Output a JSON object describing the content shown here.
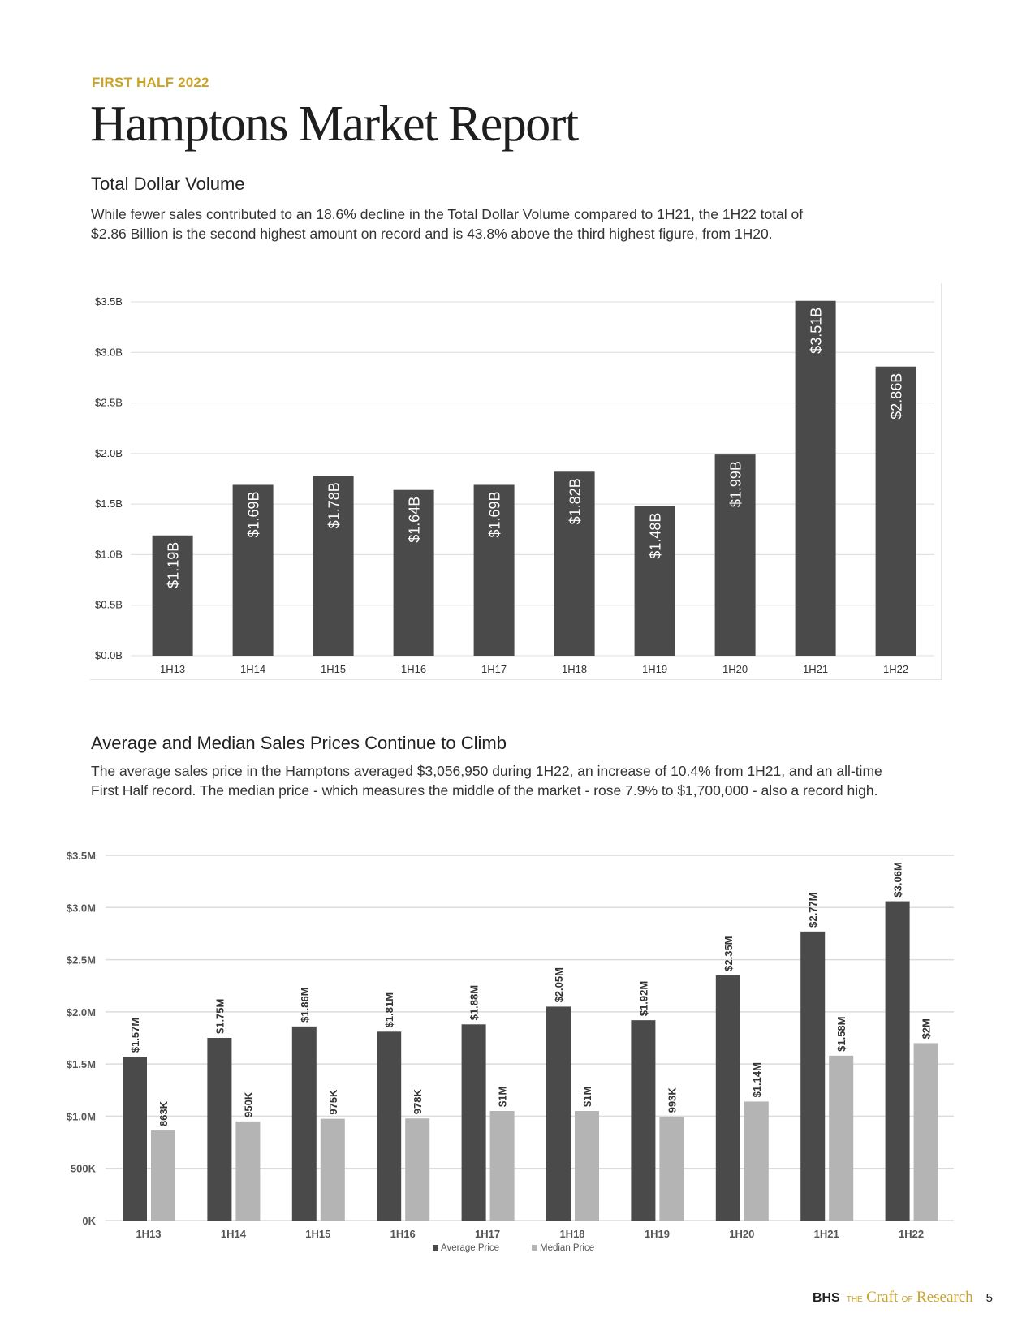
{
  "header": {
    "eyebrow": "FIRST HALF 2022",
    "title": "Hamptons Market Report"
  },
  "section1": {
    "heading": "Total Dollar Volume",
    "lines": [
      "While fewer sales contributed to an 18.6% decline in the Total Dollar Volume compared to 1H21, the 1H22 total of",
      "$2.86 Billion is the second highest amount on record and is 43.8% above the third highest figure, from 1H20."
    ]
  },
  "section2": {
    "heading": "Average and Median Sales Prices Continue to Climb",
    "lines": [
      "The average sales price in the Hamptons averaged $3,056,950 during 1H22, an increase of 10.4% from 1H21, and an all-time",
      "First Half record. The median price - which measures the middle of the market - rose 7.9% to $1,700,000 - also a record high."
    ]
  },
  "chart_data": [
    {
      "type": "bar",
      "title": "Total Dollar Volume",
      "categories": [
        "1H13",
        "1H14",
        "1H15",
        "1H16",
        "1H17",
        "1H18",
        "1H19",
        "1H20",
        "1H21",
        "1H22"
      ],
      "values": [
        1.19,
        1.69,
        1.78,
        1.64,
        1.69,
        1.82,
        1.48,
        1.99,
        3.51,
        2.86
      ],
      "value_labels": [
        "$1.19B",
        "$1.69B",
        "$1.78B",
        "$1.64B",
        "$1.69B",
        "$1.82B",
        "$1.48B",
        "$1.99B",
        "$3.51B",
        "$2.86B"
      ],
      "ylim": [
        0,
        3.5
      ],
      "yticks": [
        0,
        0.5,
        1.0,
        1.5,
        2.0,
        2.5,
        3.0,
        3.5
      ],
      "ytick_labels": [
        "$0.0B",
        "$0.5B",
        "$1.0B",
        "$1.5B",
        "$2.0B",
        "$2.5B",
        "$3.0B",
        "$3.5B"
      ],
      "grid": true,
      "color": "#4a4a4a"
    },
    {
      "type": "bar",
      "title": "Average and Median Sales Prices",
      "categories": [
        "1H13",
        "1H14",
        "1H15",
        "1H16",
        "1H17",
        "1H18",
        "1H19",
        "1H20",
        "1H21",
        "1H22"
      ],
      "series": [
        {
          "name": "Average Price",
          "color": "#4a4a4a",
          "values": [
            1.57,
            1.75,
            1.86,
            1.81,
            1.88,
            2.05,
            1.92,
            2.35,
            2.77,
            3.06
          ],
          "labels": [
            "$1.57M",
            "$1.75M",
            "$1.86M",
            "$1.81M",
            "$1.88M",
            "$2.05M",
            "$1.92M",
            "$2.35M",
            "$2.77M",
            "$3.06M"
          ]
        },
        {
          "name": "Median Price",
          "color": "#b4b4b4",
          "values": [
            0.863,
            0.95,
            0.975,
            0.978,
            1.05,
            1.05,
            0.993,
            1.14,
            1.58,
            1.7
          ],
          "labels": [
            "863K",
            "950K",
            "975K",
            "978K",
            "$1M",
            "$1M",
            "993K",
            "$1.14M",
            "$1.58M",
            "$2M"
          ]
        }
      ],
      "ylim": [
        0,
        3.5
      ],
      "yticks": [
        0,
        0.5,
        1.0,
        1.5,
        2.0,
        2.5,
        3.0,
        3.5
      ],
      "ytick_labels": [
        "0K",
        "500K",
        "$1.0M",
        "$1.5M",
        "$2.0M",
        "$2.5M",
        "$3.0M",
        "$3.5M"
      ],
      "grid": true,
      "legend": "bottom-center"
    }
  ],
  "footer": {
    "brand": "BHS",
    "the": "THE",
    "craft": "Craft",
    "of": "OF",
    "research": "Research",
    "page": "5"
  }
}
